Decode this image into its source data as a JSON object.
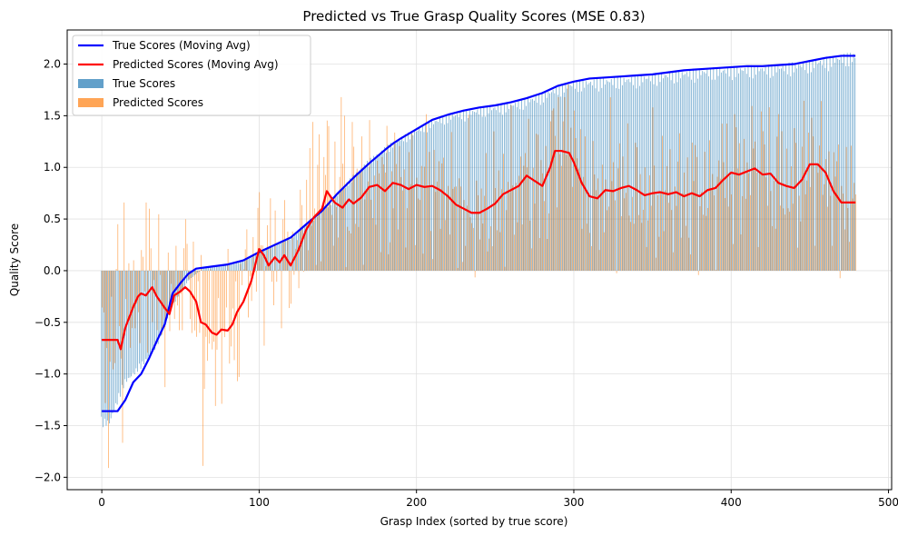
{
  "chart_data": {
    "type": "bar",
    "title": "Predicted vs True Grasp Quality Scores (MSE 0.83)",
    "xlabel": "Grasp Index (sorted by true score)",
    "ylabel": "Quality Score",
    "xlim": [
      -22,
      502
    ],
    "ylim": [
      -2.12,
      2.33
    ],
    "x_ticks": [
      0,
      100,
      200,
      300,
      400,
      500
    ],
    "y_ticks": [
      -2.0,
      -1.5,
      -1.0,
      -0.5,
      0.0,
      0.5,
      1.0,
      1.5,
      2.0
    ],
    "y_tick_labels": [
      "−2.0",
      "−1.5",
      "−1.0",
      "−0.5",
      "0.0",
      "0.5",
      "1.0",
      "1.5",
      "2.0"
    ],
    "x_tick_labels": [
      "0",
      "100",
      "200",
      "300",
      "400",
      "500"
    ],
    "grid": true,
    "legend_position": "top-left",
    "n_points": 480,
    "bar_series": [
      {
        "name": "True Scores",
        "color": "#1f77b4",
        "opacity": 0.7,
        "profile": [
          [
            0,
            -1.52
          ],
          [
            5,
            -1.5
          ],
          [
            10,
            -1.3
          ],
          [
            15,
            -1.1
          ],
          [
            25,
            -0.95
          ],
          [
            35,
            -0.75
          ],
          [
            45,
            -0.35
          ],
          [
            55,
            -0.1
          ],
          [
            65,
            0.03
          ],
          [
            80,
            0.06
          ],
          [
            90,
            0.1
          ],
          [
            100,
            0.18
          ],
          [
            110,
            0.25
          ],
          [
            120,
            0.32
          ],
          [
            130,
            0.45
          ],
          [
            140,
            0.58
          ],
          [
            150,
            0.75
          ],
          [
            160,
            0.93
          ],
          [
            170,
            1.08
          ],
          [
            180,
            1.2
          ],
          [
            190,
            1.3
          ],
          [
            200,
            1.38
          ],
          [
            210,
            1.46
          ],
          [
            220,
            1.52
          ],
          [
            240,
            1.58
          ],
          [
            260,
            1.63
          ],
          [
            280,
            1.72
          ],
          [
            290,
            1.8
          ],
          [
            300,
            1.84
          ],
          [
            320,
            1.87
          ],
          [
            340,
            1.89
          ],
          [
            360,
            1.93
          ],
          [
            380,
            1.96
          ],
          [
            400,
            1.98
          ],
          [
            430,
            2.0
          ],
          [
            450,
            2.04
          ],
          [
            470,
            2.1
          ],
          [
            479,
            2.12
          ]
        ]
      },
      {
        "name": "Predicted Scores",
        "color": "#ff7f0e",
        "opacity": 0.7,
        "spikes": [
          [
            4,
            -1.91
          ],
          [
            10,
            0.45
          ],
          [
            14,
            0.66
          ],
          [
            28,
            0.66
          ],
          [
            30,
            0.6
          ],
          [
            54,
            0.26
          ],
          [
            64,
            -1.89
          ],
          [
            72,
            -1.31
          ],
          [
            86,
            -1.07
          ],
          [
            92,
            0.4
          ],
          [
            100,
            0.76
          ],
          [
            105,
            0.44
          ],
          [
            130,
            0.88
          ],
          [
            134,
            1.44
          ],
          [
            138,
            1.32
          ],
          [
            141,
            1.1
          ],
          [
            144,
            1.4
          ],
          [
            148,
            1.25
          ],
          [
            152,
            1.68
          ],
          [
            154,
            1.5
          ],
          [
            160,
            1.2
          ],
          [
            165,
            1.3
          ],
          [
            180,
            0.95
          ],
          [
            200,
            0.9
          ],
          [
            220,
            0.82
          ],
          [
            250,
            0.8
          ],
          [
            270,
            1.0
          ],
          [
            286,
            1.55
          ],
          [
            290,
            1.68
          ],
          [
            294,
            1.68
          ],
          [
            300,
            1.55
          ],
          [
            325,
            1.05
          ],
          [
            345,
            1.0
          ],
          [
            370,
            0.95
          ],
          [
            395,
            1.05
          ],
          [
            415,
            1.25
          ],
          [
            420,
            1.35
          ],
          [
            432,
            1.35
          ],
          [
            445,
            1.2
          ],
          [
            452,
            1.3
          ],
          [
            460,
            1.08
          ],
          [
            470,
            0.82
          ],
          [
            478,
            0.85
          ]
        ]
      }
    ],
    "line_series": [
      {
        "name": "True Scores (Moving Avg)",
        "color": "#0000ff",
        "points": [
          [
            0,
            -1.36
          ],
          [
            10,
            -1.36
          ],
          [
            15,
            -1.25
          ],
          [
            20,
            -1.08
          ],
          [
            25,
            -1.0
          ],
          [
            30,
            -0.85
          ],
          [
            35,
            -0.68
          ],
          [
            40,
            -0.52
          ],
          [
            45,
            -0.22
          ],
          [
            50,
            -0.12
          ],
          [
            55,
            -0.03
          ],
          [
            60,
            0.02
          ],
          [
            70,
            0.04
          ],
          [
            80,
            0.06
          ],
          [
            90,
            0.1
          ],
          [
            100,
            0.18
          ],
          [
            110,
            0.25
          ],
          [
            120,
            0.32
          ],
          [
            130,
            0.45
          ],
          [
            140,
            0.58
          ],
          [
            150,
            0.75
          ],
          [
            160,
            0.9
          ],
          [
            170,
            1.04
          ],
          [
            180,
            1.17
          ],
          [
            185,
            1.23
          ],
          [
            190,
            1.28
          ],
          [
            200,
            1.37
          ],
          [
            210,
            1.46
          ],
          [
            220,
            1.51
          ],
          [
            230,
            1.55
          ],
          [
            240,
            1.58
          ],
          [
            250,
            1.6
          ],
          [
            260,
            1.63
          ],
          [
            270,
            1.67
          ],
          [
            280,
            1.72
          ],
          [
            290,
            1.79
          ],
          [
            300,
            1.83
          ],
          [
            310,
            1.86
          ],
          [
            320,
            1.87
          ],
          [
            330,
            1.88
          ],
          [
            340,
            1.89
          ],
          [
            350,
            1.9
          ],
          [
            360,
            1.92
          ],
          [
            370,
            1.94
          ],
          [
            380,
            1.95
          ],
          [
            390,
            1.96
          ],
          [
            400,
            1.97
          ],
          [
            410,
            1.98
          ],
          [
            420,
            1.98
          ],
          [
            430,
            1.99
          ],
          [
            440,
            2.0
          ],
          [
            450,
            2.03
          ],
          [
            460,
            2.06
          ],
          [
            470,
            2.08
          ],
          [
            479,
            2.08
          ]
        ]
      },
      {
        "name": "Predicted Scores (Moving Avg)",
        "color": "#ff0000",
        "points": [
          [
            0,
            -0.67
          ],
          [
            10,
            -0.67
          ],
          [
            12,
            -0.76
          ],
          [
            15,
            -0.55
          ],
          [
            20,
            -0.35
          ],
          [
            23,
            -0.25
          ],
          [
            25,
            -0.22
          ],
          [
            28,
            -0.24
          ],
          [
            32,
            -0.16
          ],
          [
            35,
            -0.25
          ],
          [
            40,
            -0.36
          ],
          [
            43,
            -0.42
          ],
          [
            46,
            -0.24
          ],
          [
            50,
            -0.2
          ],
          [
            53,
            -0.16
          ],
          [
            56,
            -0.2
          ],
          [
            60,
            -0.3
          ],
          [
            63,
            -0.5
          ],
          [
            66,
            -0.52
          ],
          [
            70,
            -0.6
          ],
          [
            73,
            -0.62
          ],
          [
            76,
            -0.57
          ],
          [
            80,
            -0.58
          ],
          [
            83,
            -0.52
          ],
          [
            86,
            -0.4
          ],
          [
            90,
            -0.3
          ],
          [
            95,
            -0.1
          ],
          [
            100,
            0.21
          ],
          [
            103,
            0.15
          ],
          [
            106,
            0.05
          ],
          [
            110,
            0.13
          ],
          [
            113,
            0.08
          ],
          [
            116,
            0.15
          ],
          [
            120,
            0.05
          ],
          [
            125,
            0.2
          ],
          [
            130,
            0.4
          ],
          [
            135,
            0.52
          ],
          [
            140,
            0.6
          ],
          [
            143,
            0.77
          ],
          [
            148,
            0.66
          ],
          [
            150,
            0.64
          ],
          [
            153,
            0.61
          ],
          [
            157,
            0.69
          ],
          [
            160,
            0.65
          ],
          [
            165,
            0.71
          ],
          [
            170,
            0.81
          ],
          [
            175,
            0.83
          ],
          [
            180,
            0.77
          ],
          [
            185,
            0.85
          ],
          [
            190,
            0.83
          ],
          [
            195,
            0.79
          ],
          [
            200,
            0.83
          ],
          [
            205,
            0.81
          ],
          [
            210,
            0.82
          ],
          [
            215,
            0.78
          ],
          [
            220,
            0.72
          ],
          [
            225,
            0.64
          ],
          [
            230,
            0.6
          ],
          [
            235,
            0.56
          ],
          [
            240,
            0.56
          ],
          [
            245,
            0.6
          ],
          [
            250,
            0.65
          ],
          [
            255,
            0.74
          ],
          [
            260,
            0.78
          ],
          [
            265,
            0.82
          ],
          [
            270,
            0.92
          ],
          [
            275,
            0.87
          ],
          [
            280,
            0.82
          ],
          [
            285,
            1.0
          ],
          [
            288,
            1.16
          ],
          [
            292,
            1.16
          ],
          [
            297,
            1.14
          ],
          [
            300,
            1.05
          ],
          [
            305,
            0.85
          ],
          [
            310,
            0.72
          ],
          [
            315,
            0.7
          ],
          [
            320,
            0.78
          ],
          [
            325,
            0.77
          ],
          [
            330,
            0.8
          ],
          [
            335,
            0.82
          ],
          [
            340,
            0.78
          ],
          [
            345,
            0.73
          ],
          [
            350,
            0.75
          ],
          [
            355,
            0.76
          ],
          [
            360,
            0.74
          ],
          [
            365,
            0.76
          ],
          [
            370,
            0.72
          ],
          [
            375,
            0.75
          ],
          [
            380,
            0.72
          ],
          [
            385,
            0.78
          ],
          [
            390,
            0.8
          ],
          [
            395,
            0.88
          ],
          [
            400,
            0.95
          ],
          [
            405,
            0.93
          ],
          [
            410,
            0.96
          ],
          [
            415,
            0.99
          ],
          [
            420,
            0.93
          ],
          [
            425,
            0.94
          ],
          [
            430,
            0.85
          ],
          [
            435,
            0.82
          ],
          [
            440,
            0.8
          ],
          [
            445,
            0.88
          ],
          [
            450,
            1.03
          ],
          [
            455,
            1.03
          ],
          [
            460,
            0.95
          ],
          [
            465,
            0.77
          ],
          [
            470,
            0.66
          ],
          [
            479,
            0.66
          ]
        ]
      }
    ],
    "legend": [
      {
        "label": "True Scores (Moving Avg)",
        "kind": "line",
        "color": "#0000ff"
      },
      {
        "label": "Predicted Scores (Moving Avg)",
        "kind": "line",
        "color": "#ff0000"
      },
      {
        "label": "True Scores",
        "kind": "patch",
        "color": "#1f77b4"
      },
      {
        "label": "Predicted Scores",
        "kind": "patch",
        "color": "#ff7f0e"
      }
    ]
  }
}
